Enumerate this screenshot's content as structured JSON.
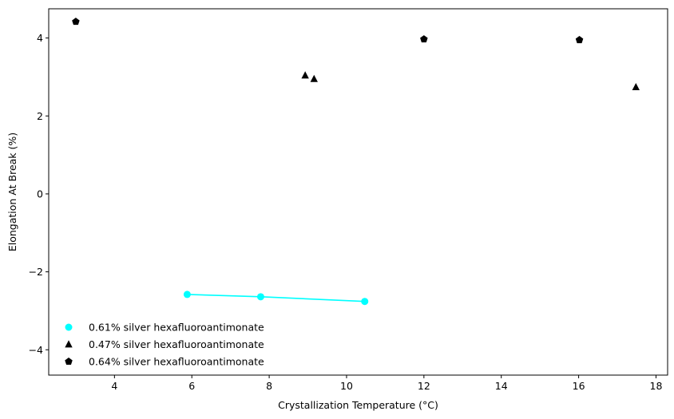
{
  "chart_data": {
    "type": "scatter",
    "title": "",
    "xlabel": "Crystallization Temperature (°C)",
    "ylabel": "Elongation At Break (%)",
    "xlim": [
      2.3,
      18.3
    ],
    "ylim": [
      -4.65,
      4.75
    ],
    "xticks": [
      4,
      6,
      8,
      10,
      12,
      14,
      16,
      18
    ],
    "yticks": [
      -4,
      -2,
      0,
      2,
      4
    ],
    "xtick_labels": [
      "4",
      "6",
      "8",
      "10",
      "12",
      "14",
      "16",
      "18"
    ],
    "ytick_labels": [
      "−4",
      "−2",
      "0",
      "2",
      "4"
    ],
    "grid": false,
    "legend_position": "lower-left",
    "series": [
      {
        "name": "0.61% silver hexafluoroantimonate",
        "marker": "circle",
        "color": "#00ffff",
        "line": true,
        "x": [
          5.88,
          7.78,
          10.47
        ],
        "y": [
          -2.58,
          -2.64,
          -2.76
        ]
      },
      {
        "name": "0.47% silver hexafluoroantimonate",
        "marker": "triangle",
        "color": "#000000",
        "line": false,
        "x": [
          8.93,
          9.16,
          17.48
        ],
        "y": [
          3.04,
          2.95,
          2.74
        ]
      },
      {
        "name": "0.64% silver hexafluoroantimonate",
        "marker": "pentagon",
        "color": "#000000",
        "line": false,
        "x": [
          3.0,
          12.0,
          16.02
        ],
        "y": [
          4.42,
          3.97,
          3.95
        ]
      }
    ]
  }
}
